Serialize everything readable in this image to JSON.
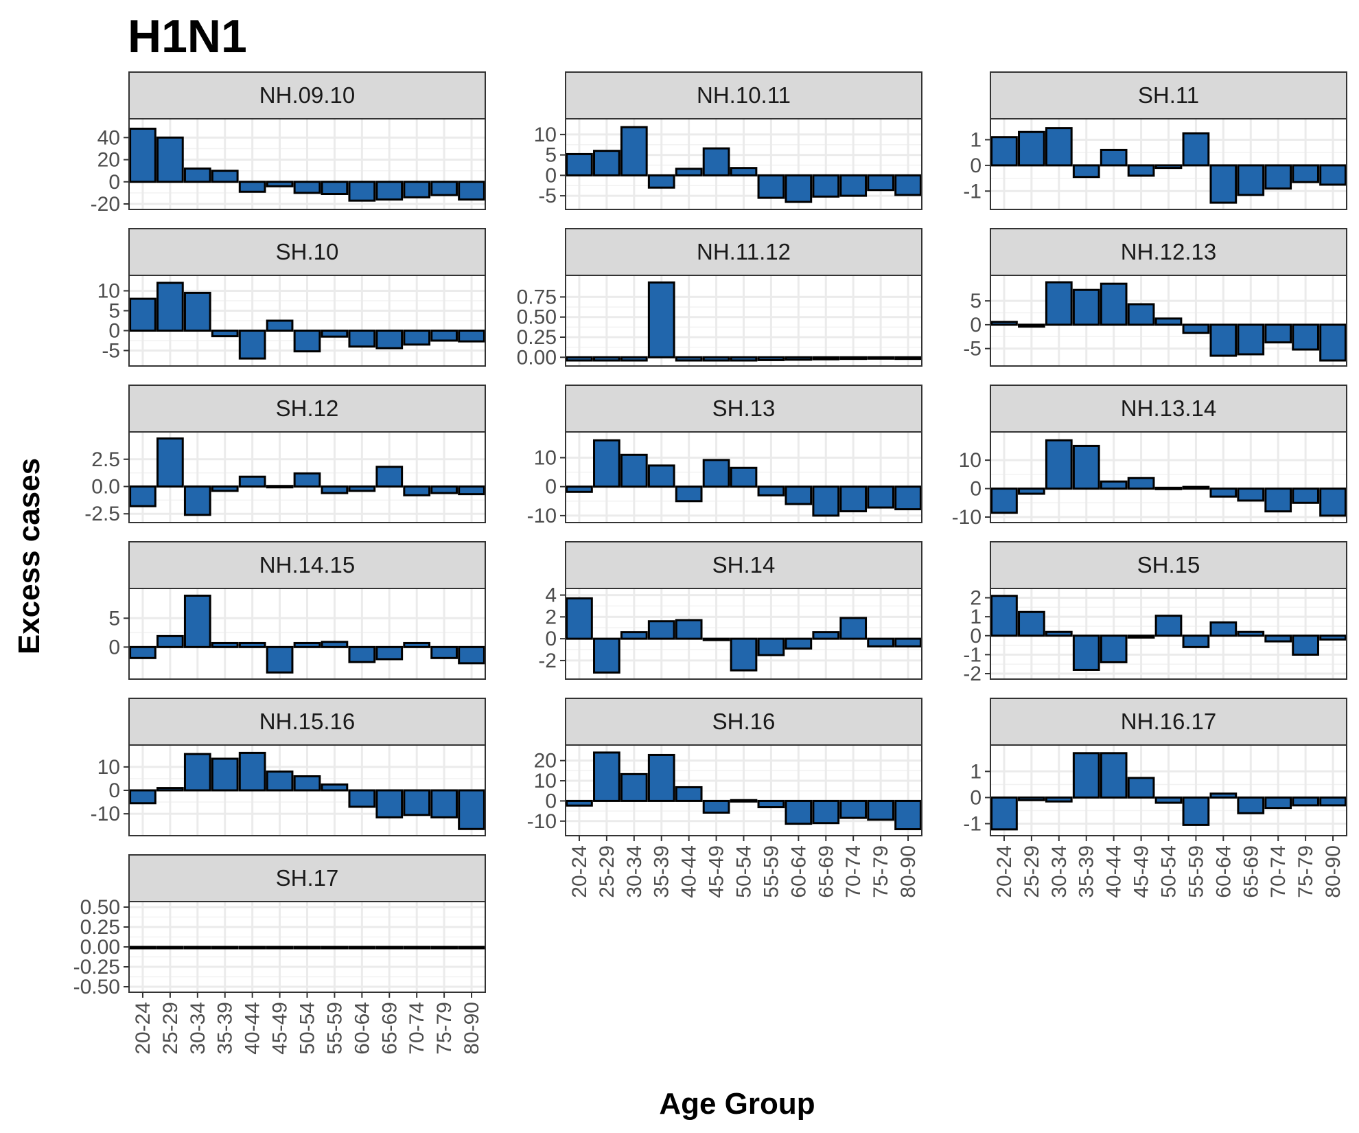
{
  "chart_data": {
    "type": "bar",
    "title": "H1N1",
    "xlabel": "Age Group",
    "ylabel": "Excess cases",
    "categories": [
      "20-24",
      "25-29",
      "30-34",
      "35-39",
      "40-44",
      "45-49",
      "50-54",
      "55-59",
      "60-64",
      "65-69",
      "70-74",
      "75-79",
      "80-90"
    ],
    "bar_color": "#2166ac",
    "panels": [
      {
        "name": "NH.09.10",
        "ylim": [
          -20,
          52
        ],
        "ticks": [
          -20,
          0,
          20,
          40
        ],
        "tick_labels": [
          "-20",
          "0",
          "20",
          "40"
        ],
        "values": [
          48,
          40,
          12,
          10,
          -9,
          -4,
          -10,
          -11,
          -17,
          -16,
          -14,
          -12,
          -16
        ]
      },
      {
        "name": "NH.10.11",
        "ylim": [
          -7,
          12.5
        ],
        "ticks": [
          -5,
          0,
          5,
          10
        ],
        "tick_labels": [
          "-5",
          "0",
          "5",
          "10"
        ],
        "values": [
          5.2,
          6,
          11.8,
          -3,
          1.6,
          6.6,
          1.8,
          -5.5,
          -6.5,
          -5.2,
          -5,
          -3.6,
          -4.8
        ]
      },
      {
        "name": "SH.11",
        "ylim": [
          -1.5,
          1.6
        ],
        "ticks": [
          -1,
          0,
          1
        ],
        "tick_labels": [
          "-1",
          "0",
          "1"
        ],
        "values": [
          1.1,
          1.3,
          1.45,
          -0.45,
          0.6,
          -0.4,
          -0.1,
          1.25,
          -1.45,
          -1.15,
          -0.9,
          -0.65,
          -0.75
        ]
      },
      {
        "name": "SH.10",
        "ylim": [
          -7.5,
          12.5
        ],
        "ticks": [
          -5,
          0,
          5,
          10
        ],
        "tick_labels": [
          "-5",
          "0",
          "5",
          "10"
        ],
        "values": [
          8,
          12,
          9.5,
          -1.4,
          -7,
          2.5,
          -5.2,
          -1.5,
          -4,
          -4.4,
          -3.5,
          -2.5,
          -2.7
        ]
      },
      {
        "name": "NH.11.12",
        "ylim": [
          -0.04,
          0.95
        ],
        "ticks": [
          0,
          0.25,
          0.5,
          0.75
        ],
        "tick_labels": [
          "0.00",
          "0.25",
          "0.50",
          "0.75"
        ],
        "values": [
          -0.04,
          -0.04,
          -0.04,
          0.93,
          -0.04,
          -0.04,
          -0.04,
          -0.035,
          -0.03,
          -0.025,
          -0.02,
          -0.015,
          -0.02
        ]
      },
      {
        "name": "NH.12.13",
        "ylim": [
          -7.5,
          9.2
        ],
        "ticks": [
          -5,
          0,
          5
        ],
        "tick_labels": [
          "-5",
          "0",
          "5"
        ],
        "values": [
          0.6,
          -0.4,
          8.9,
          7.3,
          8.6,
          4.3,
          1.3,
          -1.7,
          -6.5,
          -6.2,
          -3.7,
          -5.2,
          -7.5
        ]
      },
      {
        "name": "SH.12",
        "ylim": [
          -2.8,
          4.5
        ],
        "ticks": [
          -2.5,
          0,
          2.5
        ],
        "tick_labels": [
          "-2.5",
          "0.0",
          "2.5"
        ],
        "values": [
          -1.8,
          4.4,
          -2.6,
          -0.4,
          0.9,
          0.05,
          1.2,
          -0.6,
          -0.4,
          1.8,
          -0.8,
          -0.6,
          -0.7
        ]
      },
      {
        "name": "SH.13",
        "ylim": [
          -10.5,
          17
        ],
        "ticks": [
          -10,
          0,
          10
        ],
        "tick_labels": [
          "-10",
          "0",
          "10"
        ],
        "values": [
          -1.8,
          16,
          11,
          7.3,
          -5,
          9.2,
          6.5,
          -3,
          -6,
          -10,
          -8.5,
          -7.2,
          -7.8
        ]
      },
      {
        "name": "NH.13.14",
        "ylim": [
          -10,
          18
        ],
        "ticks": [
          -10,
          0,
          10
        ],
        "tick_labels": [
          "-10",
          "0",
          "10"
        ],
        "values": [
          -8.5,
          -1.8,
          17,
          15,
          2.5,
          3.7,
          0.3,
          0.6,
          -2.8,
          -4.2,
          -8,
          -5,
          -9.5
        ]
      },
      {
        "name": "NH.14.15",
        "ylim": [
          -4.6,
          9.2
        ],
        "ticks": [
          0,
          5
        ],
        "tick_labels": [
          "0",
          "5"
        ],
        "values": [
          -1.9,
          1.9,
          8.9,
          0.7,
          0.7,
          -4.4,
          0.7,
          0.9,
          -2.6,
          -2.1,
          0.7,
          -1.9,
          -2.8
        ]
      },
      {
        "name": "SH.14",
        "ylim": [
          -3.2,
          4.1
        ],
        "ticks": [
          -2,
          0,
          2,
          4
        ],
        "tick_labels": [
          "-2",
          "0",
          "2",
          "4"
        ],
        "values": [
          3.7,
          -3.1,
          0.6,
          1.6,
          1.7,
          -0.1,
          -2.9,
          -1.5,
          -0.9,
          0.6,
          1.9,
          -0.7,
          -0.7
        ]
      },
      {
        "name": "SH.15",
        "ylim": [
          -2,
          2.2
        ],
        "ticks": [
          -2,
          -1,
          0,
          1,
          2
        ],
        "tick_labels": [
          "-2",
          "-1",
          "0",
          "1",
          "2"
        ],
        "values": [
          2.1,
          1.25,
          0.2,
          -1.8,
          -1.4,
          -0.1,
          1.05,
          -0.6,
          0.7,
          0.2,
          -0.3,
          -1,
          -0.2
        ]
      },
      {
        "name": "NH.15.16",
        "ylim": [
          -17,
          17
        ],
        "ticks": [
          -10,
          0,
          10
        ],
        "tick_labels": [
          "-10",
          "0",
          "10"
        ],
        "values": [
          -5.5,
          1,
          15.5,
          13.5,
          16,
          8,
          6,
          2.5,
          -7,
          -11.5,
          -10.5,
          -11.5,
          -16.5
        ]
      },
      {
        "name": "SH.16",
        "ylim": [
          -14.5,
          25
        ],
        "ticks": [
          -10,
          0,
          10,
          20
        ],
        "tick_labels": [
          "-10",
          "0",
          "10",
          "20"
        ],
        "values": [
          -2.3,
          24,
          13.3,
          22.8,
          6.8,
          -5.8,
          0.4,
          -3.1,
          -11.3,
          -11,
          -8.4,
          -9.3,
          -14
        ]
      },
      {
        "name": "NH.16.17",
        "ylim": [
          -1.25,
          1.8
        ],
        "ticks": [
          -1,
          0,
          1
        ],
        "tick_labels": [
          "-1",
          "0",
          "1"
        ],
        "values": [
          -1.22,
          -0.1,
          -0.15,
          1.7,
          1.7,
          0.75,
          -0.2,
          -1.05,
          0.15,
          -0.6,
          -0.4,
          -0.3,
          -0.3
        ]
      },
      {
        "name": "SH.17",
        "ylim": [
          -0.5,
          0.5
        ],
        "ticks": [
          -0.5,
          -0.25,
          0,
          0.25,
          0.5
        ],
        "tick_labels": [
          "-0.50",
          "-0.25",
          "0.00",
          "0.25",
          "0.50"
        ],
        "values": [
          0,
          0,
          0,
          0,
          0,
          0,
          0,
          0,
          0,
          0,
          0,
          0,
          0
        ]
      }
    ]
  }
}
